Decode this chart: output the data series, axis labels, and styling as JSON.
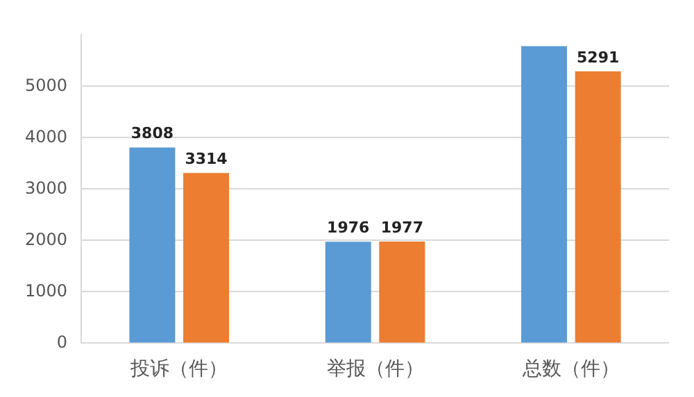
{
  "chart_data": {
    "type": "bar",
    "categories": [
      "投诉（件）",
      "举报（件）",
      "总数（件）"
    ],
    "series": [
      {
        "color": "#5b9bd5",
        "values": [
          3808,
          1976,
          5784
        ],
        "value_labels": [
          "3808",
          "1976",
          null
        ]
      },
      {
        "color": "#ed7d31",
        "values": [
          3314,
          1977,
          5291
        ],
        "value_labels": [
          "3314",
          "1977",
          "5291"
        ]
      }
    ],
    "ylim": [
      0,
      6000
    ],
    "yticks": [
      0,
      1000,
      2000,
      3000,
      4000,
      5000
    ],
    "grid": "y",
    "legend": false
  }
}
